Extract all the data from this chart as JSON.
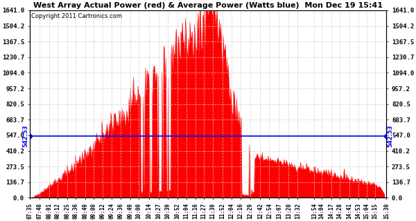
{
  "title": "West Array Actual Power (red) & Average Power (Watts blue)  Mon Dec 19 15:41",
  "copyright": "Copyright 2011 Cartronics.com",
  "average_power": 542.53,
  "ymax": 1641.0,
  "ymin": 0.0,
  "yticks": [
    0.0,
    136.7,
    273.5,
    410.2,
    547.0,
    683.7,
    820.5,
    957.2,
    1094.0,
    1230.7,
    1367.5,
    1504.2,
    1641.0
  ],
  "background_color": "#ffffff",
  "fill_color": "#ff0000",
  "avg_line_color": "#0000ff",
  "grid_color": "#cccccc",
  "x_labels": [
    "07:35",
    "07:48",
    "08:01",
    "08:12",
    "08:25",
    "08:36",
    "08:49",
    "09:00",
    "09:12",
    "09:24",
    "09:36",
    "09:49",
    "10:00",
    "10:14",
    "10:27",
    "10:39",
    "10:52",
    "11:04",
    "11:16",
    "11:27",
    "11:39",
    "11:52",
    "12:04",
    "12:16",
    "12:29",
    "12:42",
    "12:54",
    "13:07",
    "13:20",
    "13:32",
    "13:54",
    "14:04",
    "14:17",
    "14:28",
    "14:41",
    "14:53",
    "15:04",
    "15:15",
    "15:30"
  ]
}
